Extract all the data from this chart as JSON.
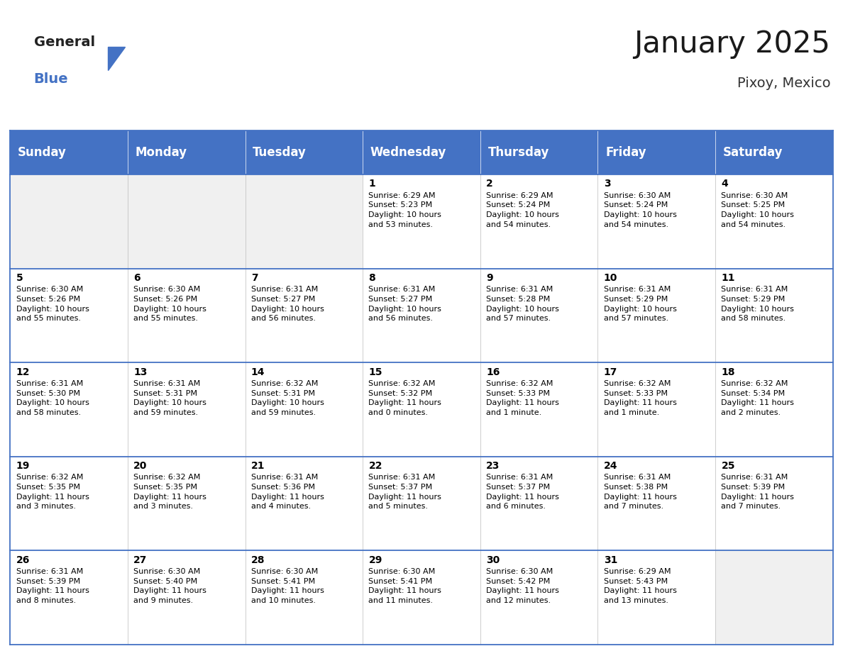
{
  "title": "January 2025",
  "subtitle": "Pixoy, Mexico",
  "header_color": "#4472C4",
  "header_text_color": "#FFFFFF",
  "days_of_week": [
    "Sunday",
    "Monday",
    "Tuesday",
    "Wednesday",
    "Thursday",
    "Friday",
    "Saturday"
  ],
  "cell_data": [
    [
      "",
      "",
      "",
      "1\nSunrise: 6:29 AM\nSunset: 5:23 PM\nDaylight: 10 hours\nand 53 minutes.",
      "2\nSunrise: 6:29 AM\nSunset: 5:24 PM\nDaylight: 10 hours\nand 54 minutes.",
      "3\nSunrise: 6:30 AM\nSunset: 5:24 PM\nDaylight: 10 hours\nand 54 minutes.",
      "4\nSunrise: 6:30 AM\nSunset: 5:25 PM\nDaylight: 10 hours\nand 54 minutes."
    ],
    [
      "5\nSunrise: 6:30 AM\nSunset: 5:26 PM\nDaylight: 10 hours\nand 55 minutes.",
      "6\nSunrise: 6:30 AM\nSunset: 5:26 PM\nDaylight: 10 hours\nand 55 minutes.",
      "7\nSunrise: 6:31 AM\nSunset: 5:27 PM\nDaylight: 10 hours\nand 56 minutes.",
      "8\nSunrise: 6:31 AM\nSunset: 5:27 PM\nDaylight: 10 hours\nand 56 minutes.",
      "9\nSunrise: 6:31 AM\nSunset: 5:28 PM\nDaylight: 10 hours\nand 57 minutes.",
      "10\nSunrise: 6:31 AM\nSunset: 5:29 PM\nDaylight: 10 hours\nand 57 minutes.",
      "11\nSunrise: 6:31 AM\nSunset: 5:29 PM\nDaylight: 10 hours\nand 58 minutes."
    ],
    [
      "12\nSunrise: 6:31 AM\nSunset: 5:30 PM\nDaylight: 10 hours\nand 58 minutes.",
      "13\nSunrise: 6:31 AM\nSunset: 5:31 PM\nDaylight: 10 hours\nand 59 minutes.",
      "14\nSunrise: 6:32 AM\nSunset: 5:31 PM\nDaylight: 10 hours\nand 59 minutes.",
      "15\nSunrise: 6:32 AM\nSunset: 5:32 PM\nDaylight: 11 hours\nand 0 minutes.",
      "16\nSunrise: 6:32 AM\nSunset: 5:33 PM\nDaylight: 11 hours\nand 1 minute.",
      "17\nSunrise: 6:32 AM\nSunset: 5:33 PM\nDaylight: 11 hours\nand 1 minute.",
      "18\nSunrise: 6:32 AM\nSunset: 5:34 PM\nDaylight: 11 hours\nand 2 minutes."
    ],
    [
      "19\nSunrise: 6:32 AM\nSunset: 5:35 PM\nDaylight: 11 hours\nand 3 minutes.",
      "20\nSunrise: 6:32 AM\nSunset: 5:35 PM\nDaylight: 11 hours\nand 3 minutes.",
      "21\nSunrise: 6:31 AM\nSunset: 5:36 PM\nDaylight: 11 hours\nand 4 minutes.",
      "22\nSunrise: 6:31 AM\nSunset: 5:37 PM\nDaylight: 11 hours\nand 5 minutes.",
      "23\nSunrise: 6:31 AM\nSunset: 5:37 PM\nDaylight: 11 hours\nand 6 minutes.",
      "24\nSunrise: 6:31 AM\nSunset: 5:38 PM\nDaylight: 11 hours\nand 7 minutes.",
      "25\nSunrise: 6:31 AM\nSunset: 5:39 PM\nDaylight: 11 hours\nand 7 minutes."
    ],
    [
      "26\nSunrise: 6:31 AM\nSunset: 5:39 PM\nDaylight: 11 hours\nand 8 minutes.",
      "27\nSunrise: 6:30 AM\nSunset: 5:40 PM\nDaylight: 11 hours\nand 9 minutes.",
      "28\nSunrise: 6:30 AM\nSunset: 5:41 PM\nDaylight: 11 hours\nand 10 minutes.",
      "29\nSunrise: 6:30 AM\nSunset: 5:41 PM\nDaylight: 11 hours\nand 11 minutes.",
      "30\nSunrise: 6:30 AM\nSunset: 5:42 PM\nDaylight: 11 hours\nand 12 minutes.",
      "31\nSunrise: 6:29 AM\nSunset: 5:43 PM\nDaylight: 11 hours\nand 13 minutes.",
      ""
    ]
  ],
  "num_rows": 5,
  "num_cols": 7,
  "cell_bg_color": "#FFFFFF",
  "alt_cell_bg_color": "#F0F0F0",
  "border_color": "#4472C4",
  "text_color": "#000000",
  "day_number_color": "#000000",
  "logo_general_color": "#222222",
  "logo_blue_color": "#4472C4",
  "title_fontsize": 30,
  "subtitle_fontsize": 14,
  "header_fontsize": 12,
  "day_num_fontsize": 10,
  "cell_text_fontsize": 8
}
